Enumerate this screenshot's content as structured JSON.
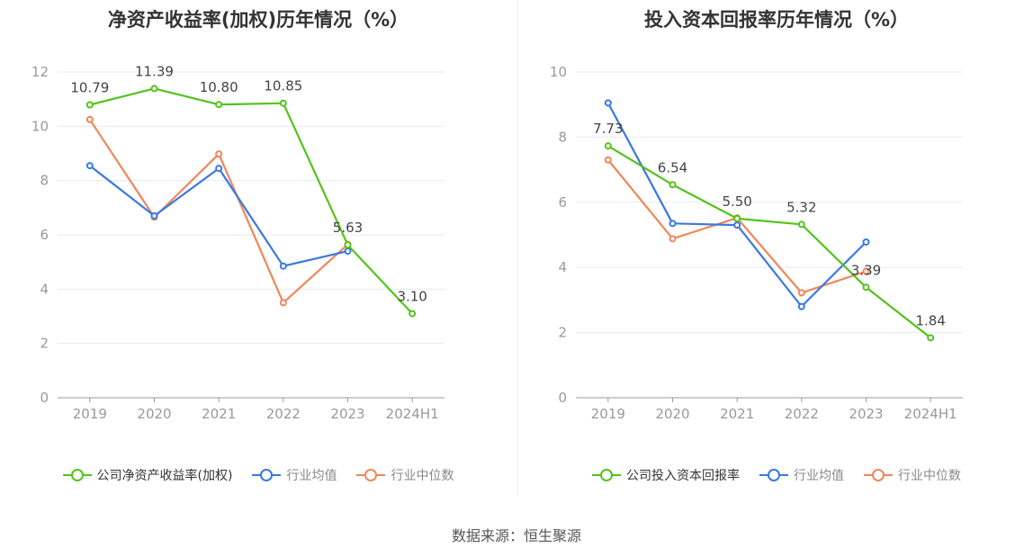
{
  "charts": [
    {
      "title": "净资产收益率(加权)历年情况（%）",
      "legend": [
        "公司净资产收益率(加权)",
        "行业均值",
        "行业中位数"
      ]
    },
    {
      "title": "投入资本回报率历年情况（%）",
      "legend": [
        "公司投入资本回报率",
        "行业均值",
        "行业中位数"
      ]
    }
  ],
  "source": "数据来源：恒生聚源",
  "colors": {
    "company": "#52c41a",
    "industry_mean": "#3a78e0",
    "industry_median": "#f0865a",
    "axis": "#999999",
    "grid": "#e6e9f2"
  },
  "chart_data": [
    {
      "type": "line",
      "title": "净资产收益率(加权)历年情况（%）",
      "categories": [
        "2019",
        "2020",
        "2021",
        "2022",
        "2023",
        "2024H1"
      ],
      "ylim": [
        0,
        12
      ],
      "yticks": [
        0,
        2,
        4,
        6,
        8,
        10,
        12
      ],
      "grid": true,
      "legend_position": "bottom",
      "series": [
        {
          "name": "公司净资产收益率(加权)",
          "values": [
            10.79,
            11.39,
            10.8,
            10.85,
            5.63,
            3.1
          ],
          "labels": [
            "10.79",
            "11.39",
            "10.80",
            "10.85",
            "5.63",
            "3.10"
          ]
        },
        {
          "name": "行业均值",
          "values": [
            8.55,
            6.7,
            8.45,
            4.85,
            5.4,
            null
          ]
        },
        {
          "name": "行业中位数",
          "values": [
            10.25,
            6.65,
            8.98,
            3.5,
            5.65,
            null
          ]
        }
      ]
    },
    {
      "type": "line",
      "title": "投入资本回报率历年情况（%）",
      "categories": [
        "2019",
        "2020",
        "2021",
        "2022",
        "2023",
        "2024H1"
      ],
      "ylim": [
        0,
        10
      ],
      "yticks": [
        0,
        2,
        4,
        6,
        8,
        10
      ],
      "grid": true,
      "legend_position": "bottom",
      "series": [
        {
          "name": "公司投入资本回报率",
          "values": [
            7.73,
            6.54,
            5.5,
            5.32,
            3.39,
            1.84
          ],
          "labels": [
            "7.73",
            "6.54",
            "5.50",
            "5.32",
            "3.39",
            "1.84"
          ]
        },
        {
          "name": "行业均值",
          "values": [
            9.05,
            5.35,
            5.3,
            2.8,
            4.78,
            null
          ]
        },
        {
          "name": "行业中位数",
          "values": [
            7.3,
            4.88,
            5.52,
            3.22,
            3.88,
            null
          ]
        }
      ]
    }
  ]
}
